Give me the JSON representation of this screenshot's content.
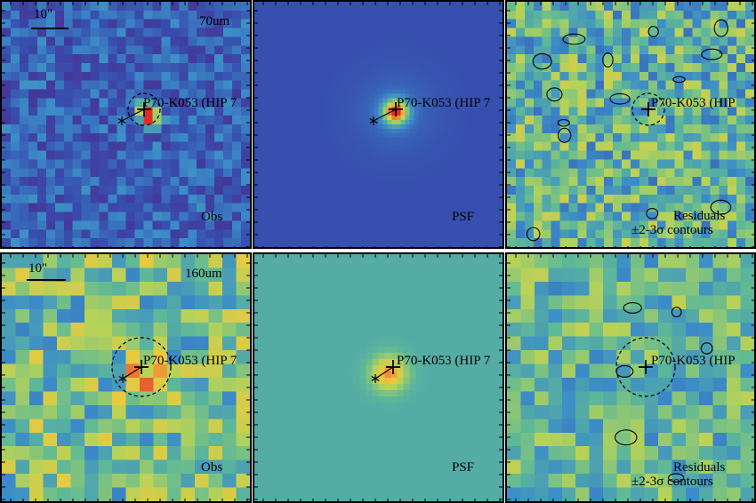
{
  "panels": [
    {
      "id": "r1c1",
      "band_label": "70um",
      "source_label": "P70-K053 (HIP 7",
      "corner_label": "Obs",
      "scale_label": "10\"",
      "palette": "obs",
      "seed": 11
    },
    {
      "id": "r1c2",
      "band_label": "",
      "source_label": "P70-K053 (HIP 7",
      "corner_label": "PSF",
      "scale_label": "",
      "palette": "psf70",
      "seed": 12
    },
    {
      "id": "r1c3",
      "band_label": "",
      "source_label": "P70-K053 (HIP",
      "corner_label": "Residuals",
      "corner_label2": "±2-3σ contours",
      "scale_label": "",
      "palette": "res",
      "seed": 13
    },
    {
      "id": "r2c1",
      "band_label": "160um",
      "source_label": "P70-K053 (HIP 7",
      "corner_label": "Obs",
      "scale_label": "10\"",
      "palette": "obs160",
      "seed": 21
    },
    {
      "id": "r2c2",
      "band_label": "",
      "source_label": "P70-K053 (HIP 7",
      "corner_label": "PSF",
      "scale_label": "",
      "palette": "psf160",
      "seed": 22
    },
    {
      "id": "r2c3",
      "band_label": "",
      "source_label": "P70-K053 (HIP",
      "corner_label": "Residuals",
      "corner_label2": "±2-3σ contours",
      "scale_label": "",
      "palette": "res160",
      "seed": 23
    }
  ],
  "axis_ticks": {
    "r1c2_right": [
      "30",
      "20",
      "10"
    ],
    "r2c1_right": [
      "20",
      "10"
    ],
    "r2c2_left": [
      "20",
      "10"
    ]
  }
}
